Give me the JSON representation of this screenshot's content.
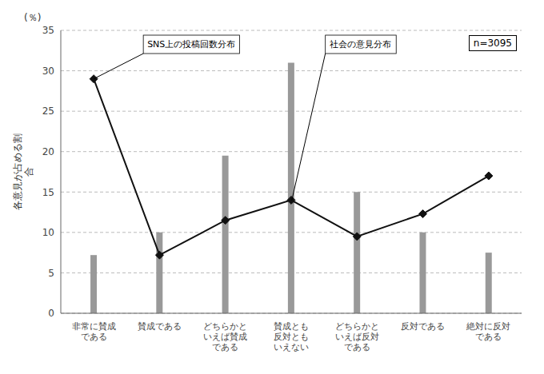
{
  "chart_data": {
    "type": "bar",
    "ylabel": "各意見が占める割\n合",
    "annotations": [
      "(％)",
      "n=3095"
    ],
    "categories": [
      "非常に賛成\nである",
      "賛成である",
      "どちらかと\nいえば賛成\nである",
      "賛成とも\n反対とも\nいえない",
      "どちらかと\nいえば反対\nである",
      "反対である",
      "絶対に反対\nである"
    ],
    "series": [
      {
        "name": "社会の意見分布",
        "type": "bar",
        "color": "#999999",
        "values": [
          7.2,
          10.0,
          19.5,
          31.0,
          15.0,
          10.0,
          7.5
        ]
      },
      {
        "name": "SNS上の投稿回数分布",
        "type": "line",
        "color": "#111111",
        "marker": "diamond",
        "line_style": "solid",
        "values": [
          29.0,
          7.2,
          11.5,
          14.0,
          9.5,
          12.3,
          17.0
        ]
      }
    ],
    "ylim": [
      0,
      35
    ],
    "yticks": [
      0,
      5,
      10,
      15,
      20,
      25,
      30,
      35
    ],
    "grid": true
  }
}
